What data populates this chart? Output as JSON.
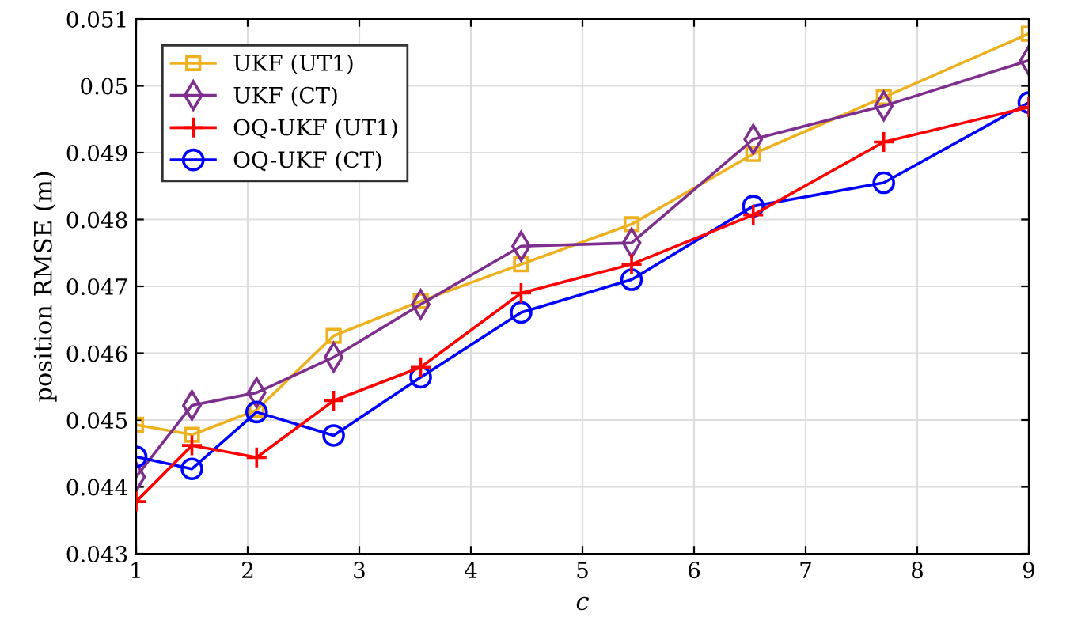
{
  "chart_data": {
    "type": "line",
    "xlabel": "c",
    "ylabel": "position RMSE (m)",
    "x": [
      1,
      1.5,
      2.08,
      2.77,
      3.55,
      4.45,
      5.44,
      6.53,
      7.7,
      9
    ],
    "series": [
      {
        "name": "UKF (UT1)",
        "color": "#edb120",
        "marker": "square",
        "values": [
          0.04493,
          0.04478,
          0.04515,
          0.04626,
          0.04678,
          0.04733,
          0.04793,
          0.04898,
          0.04983,
          0.05078
        ]
      },
      {
        "name": "UKF (CT)",
        "color": "#7e2f8e",
        "marker": "diamond",
        "values": [
          0.04415,
          0.04522,
          0.04541,
          0.04594,
          0.04673,
          0.0476,
          0.04765,
          0.0492,
          0.0497,
          0.05038
        ]
      },
      {
        "name": "OQ-UKF (UT1)",
        "color": "#ff0000",
        "marker": "cross",
        "values": [
          0.04378,
          0.04462,
          0.04444,
          0.04529,
          0.04579,
          0.0469,
          0.04733,
          0.04807,
          0.04916,
          0.04968
        ]
      },
      {
        "name": "OQ-UKF (CT)",
        "color": "#0000ff",
        "marker": "circle",
        "values": [
          0.04445,
          0.04427,
          0.04512,
          0.04477,
          0.04564,
          0.04661,
          0.0471,
          0.0482,
          0.04855,
          0.04975
        ]
      }
    ],
    "xlim": [
      1,
      9
    ],
    "xticks": [
      1,
      2,
      3,
      4,
      5,
      6,
      7,
      8,
      9
    ],
    "ylim": [
      0.043,
      0.051
    ],
    "yticks": [
      0.043,
      0.044,
      0.045,
      0.046,
      0.047,
      0.048,
      0.049,
      0.05,
      0.051
    ],
    "grid": true,
    "legend": "top left",
    "line_style": "solid"
  }
}
